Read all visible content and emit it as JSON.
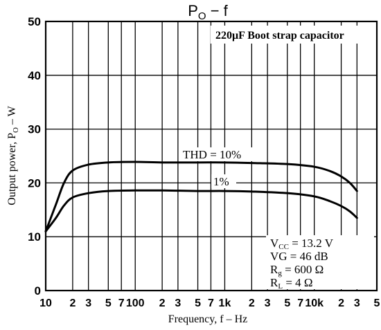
{
  "chart_data": {
    "type": "line",
    "title": "P₀ – f",
    "title_main": "P",
    "title_sub": "O",
    "title_rest": " − f",
    "xlabel": "Frequency, f – Hz",
    "ylabel": "Output power, P₀ – W",
    "ylabel_main": "Output power, P",
    "ylabel_sub": "O",
    "ylabel_rest": " – W",
    "x_scale": "log",
    "xlim": [
      10,
      50000
    ],
    "ylim": [
      0,
      50
    ],
    "grid": true,
    "x_ticks": [
      {
        "v": 10,
        "label": "10"
      },
      {
        "v": 20,
        "label": "2"
      },
      {
        "v": 30,
        "label": "3"
      },
      {
        "v": 50,
        "label": "5"
      },
      {
        "v": 70,
        "label": "7"
      },
      {
        "v": 100,
        "label": "100"
      },
      {
        "v": 200,
        "label": "2"
      },
      {
        "v": 300,
        "label": "3"
      },
      {
        "v": 500,
        "label": "5"
      },
      {
        "v": 700,
        "label": "7"
      },
      {
        "v": 1000,
        "label": "1k"
      },
      {
        "v": 2000,
        "label": "2"
      },
      {
        "v": 3000,
        "label": "3"
      },
      {
        "v": 5000,
        "label": "5"
      },
      {
        "v": 7000,
        "label": "7"
      },
      {
        "v": 10000,
        "label": "10k"
      },
      {
        "v": 20000,
        "label": "2"
      },
      {
        "v": 30000,
        "label": "3"
      },
      {
        "v": 50000,
        "label": "5"
      }
    ],
    "y_ticks": [
      {
        "v": 0,
        "label": "0"
      },
      {
        "v": 10,
        "label": "10"
      },
      {
        "v": 20,
        "label": "20"
      },
      {
        "v": 30,
        "label": "30"
      },
      {
        "v": 40,
        "label": "40"
      },
      {
        "v": 50,
        "label": "50"
      }
    ],
    "series": [
      {
        "name": "THD = 10%",
        "x": [
          10,
          13,
          16,
          20,
          30,
          50,
          100,
          200,
          500,
          1000,
          2000,
          5000,
          10000,
          15000,
          20000,
          25000,
          30000
        ],
        "y": [
          11,
          16,
          20,
          22.3,
          23.4,
          23.8,
          23.9,
          23.8,
          23.8,
          23.8,
          23.7,
          23.5,
          23,
          22.2,
          21.2,
          20,
          18.5
        ]
      },
      {
        "name": "1%",
        "x": [
          10,
          13,
          16,
          20,
          30,
          50,
          100,
          200,
          500,
          1000,
          2000,
          5000,
          10000,
          15000,
          20000,
          25000,
          30000
        ],
        "y": [
          11,
          13.5,
          15.8,
          17.3,
          18.1,
          18.5,
          18.6,
          18.6,
          18.5,
          18.5,
          18.4,
          18.1,
          17.5,
          16.6,
          15.7,
          14.7,
          13.5
        ]
      }
    ],
    "annotations": {
      "header_box": "220μF Boot strap capacitor",
      "label_thd10": "THD = 10%",
      "label_thd1": "1%",
      "vcc_main": "V",
      "vcc_sub": "CC",
      "vcc_rest": " = 13.2 V",
      "vg": "VG = 46 dB",
      "rg_main": "R",
      "rg_sub": "g",
      "rg_rest": " = 600 Ω",
      "rl_main": "R",
      "rl_sub": "L",
      "rl_rest": " = 4 Ω"
    }
  }
}
